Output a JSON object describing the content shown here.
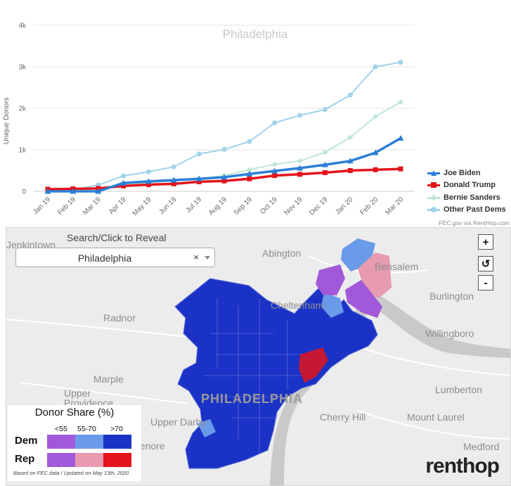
{
  "chart_data": {
    "type": "line",
    "title": "Philadelphia",
    "ylabel": "Unique Donors",
    "ylim": [
      0,
      4000
    ],
    "yticks": [
      0,
      1000,
      2000,
      3000,
      4000
    ],
    "ytick_labels": [
      "0",
      "1k",
      "2k",
      "3k",
      "4k"
    ],
    "categories": [
      "Jan 19",
      "Feb 19",
      "Mar 19",
      "Apr 19",
      "May 19",
      "Jun 19",
      "Jul 19",
      "Aug 19",
      "Sep 19",
      "Oct 19",
      "Nov 19",
      "Dec 19",
      "Jan 20",
      "Feb 20",
      "Mar 20"
    ],
    "grid": "horizontal",
    "legend_position": "bottom-right",
    "series": [
      {
        "name": "Joe Biden",
        "color": "#2b7fd6",
        "marker": "triangle",
        "values": [
          0,
          0,
          0,
          200,
          240,
          270,
          300,
          340,
          420,
          490,
          560,
          640,
          730,
          930,
          1280
        ]
      },
      {
        "name": "Donald Trump",
        "color": "#e3141b",
        "marker": "square",
        "values": [
          50,
          60,
          70,
          130,
          160,
          180,
          230,
          250,
          300,
          380,
          410,
          450,
          500,
          520,
          540
        ]
      },
      {
        "name": "Bernie Sanders",
        "color": "#bfe6d4",
        "marker": "diamond",
        "values": [
          40,
          50,
          60,
          160,
          210,
          250,
          300,
          380,
          520,
          650,
          730,
          940,
          1300,
          1800,
          2150
        ]
      },
      {
        "name": "Other Past Dems",
        "color": "#9fd3ea",
        "marker": "circle",
        "values": [
          20,
          40,
          150,
          370,
          470,
          590,
          900,
          1010,
          1200,
          1650,
          1830,
          1970,
          2320,
          3000,
          3110
        ]
      }
    ]
  },
  "credit": "FEC.gov via RentHop.com",
  "map": {
    "search_label": "Search/Click to Reveal",
    "search_value": "Philadelphia",
    "clear_symbol": "×",
    "zoom_in": "+",
    "reset": "↺",
    "zoom_out": "-",
    "city_label": "PHILADELPHIA",
    "places": [
      "Jenkintown",
      "Abington",
      "Bensalem",
      "Burlington",
      "Radnor",
      "Cheltenham",
      "Willingboro",
      "Marple",
      "Lumberton",
      "Upper Providence",
      "Cherry Hill",
      "Mount Laurel",
      "Upper Darby",
      "Medford",
      "Lenore"
    ],
    "colors": {
      "dem_low": "#a259d9",
      "dem_mid": "#6a9be8",
      "dem_high": "#1a33c6",
      "rep_low": "#a259d9",
      "rep_mid": "#e79ab0",
      "rep_high": "#e3141b"
    },
    "key": {
      "title": "Donor Share (%)",
      "columns": [
        "<55",
        "55-70",
        ">70"
      ],
      "rows": [
        "Dem",
        "Rep"
      ],
      "note": "Based on FEC data / Updated on May 13th, 2020"
    },
    "logo": "renthop"
  }
}
